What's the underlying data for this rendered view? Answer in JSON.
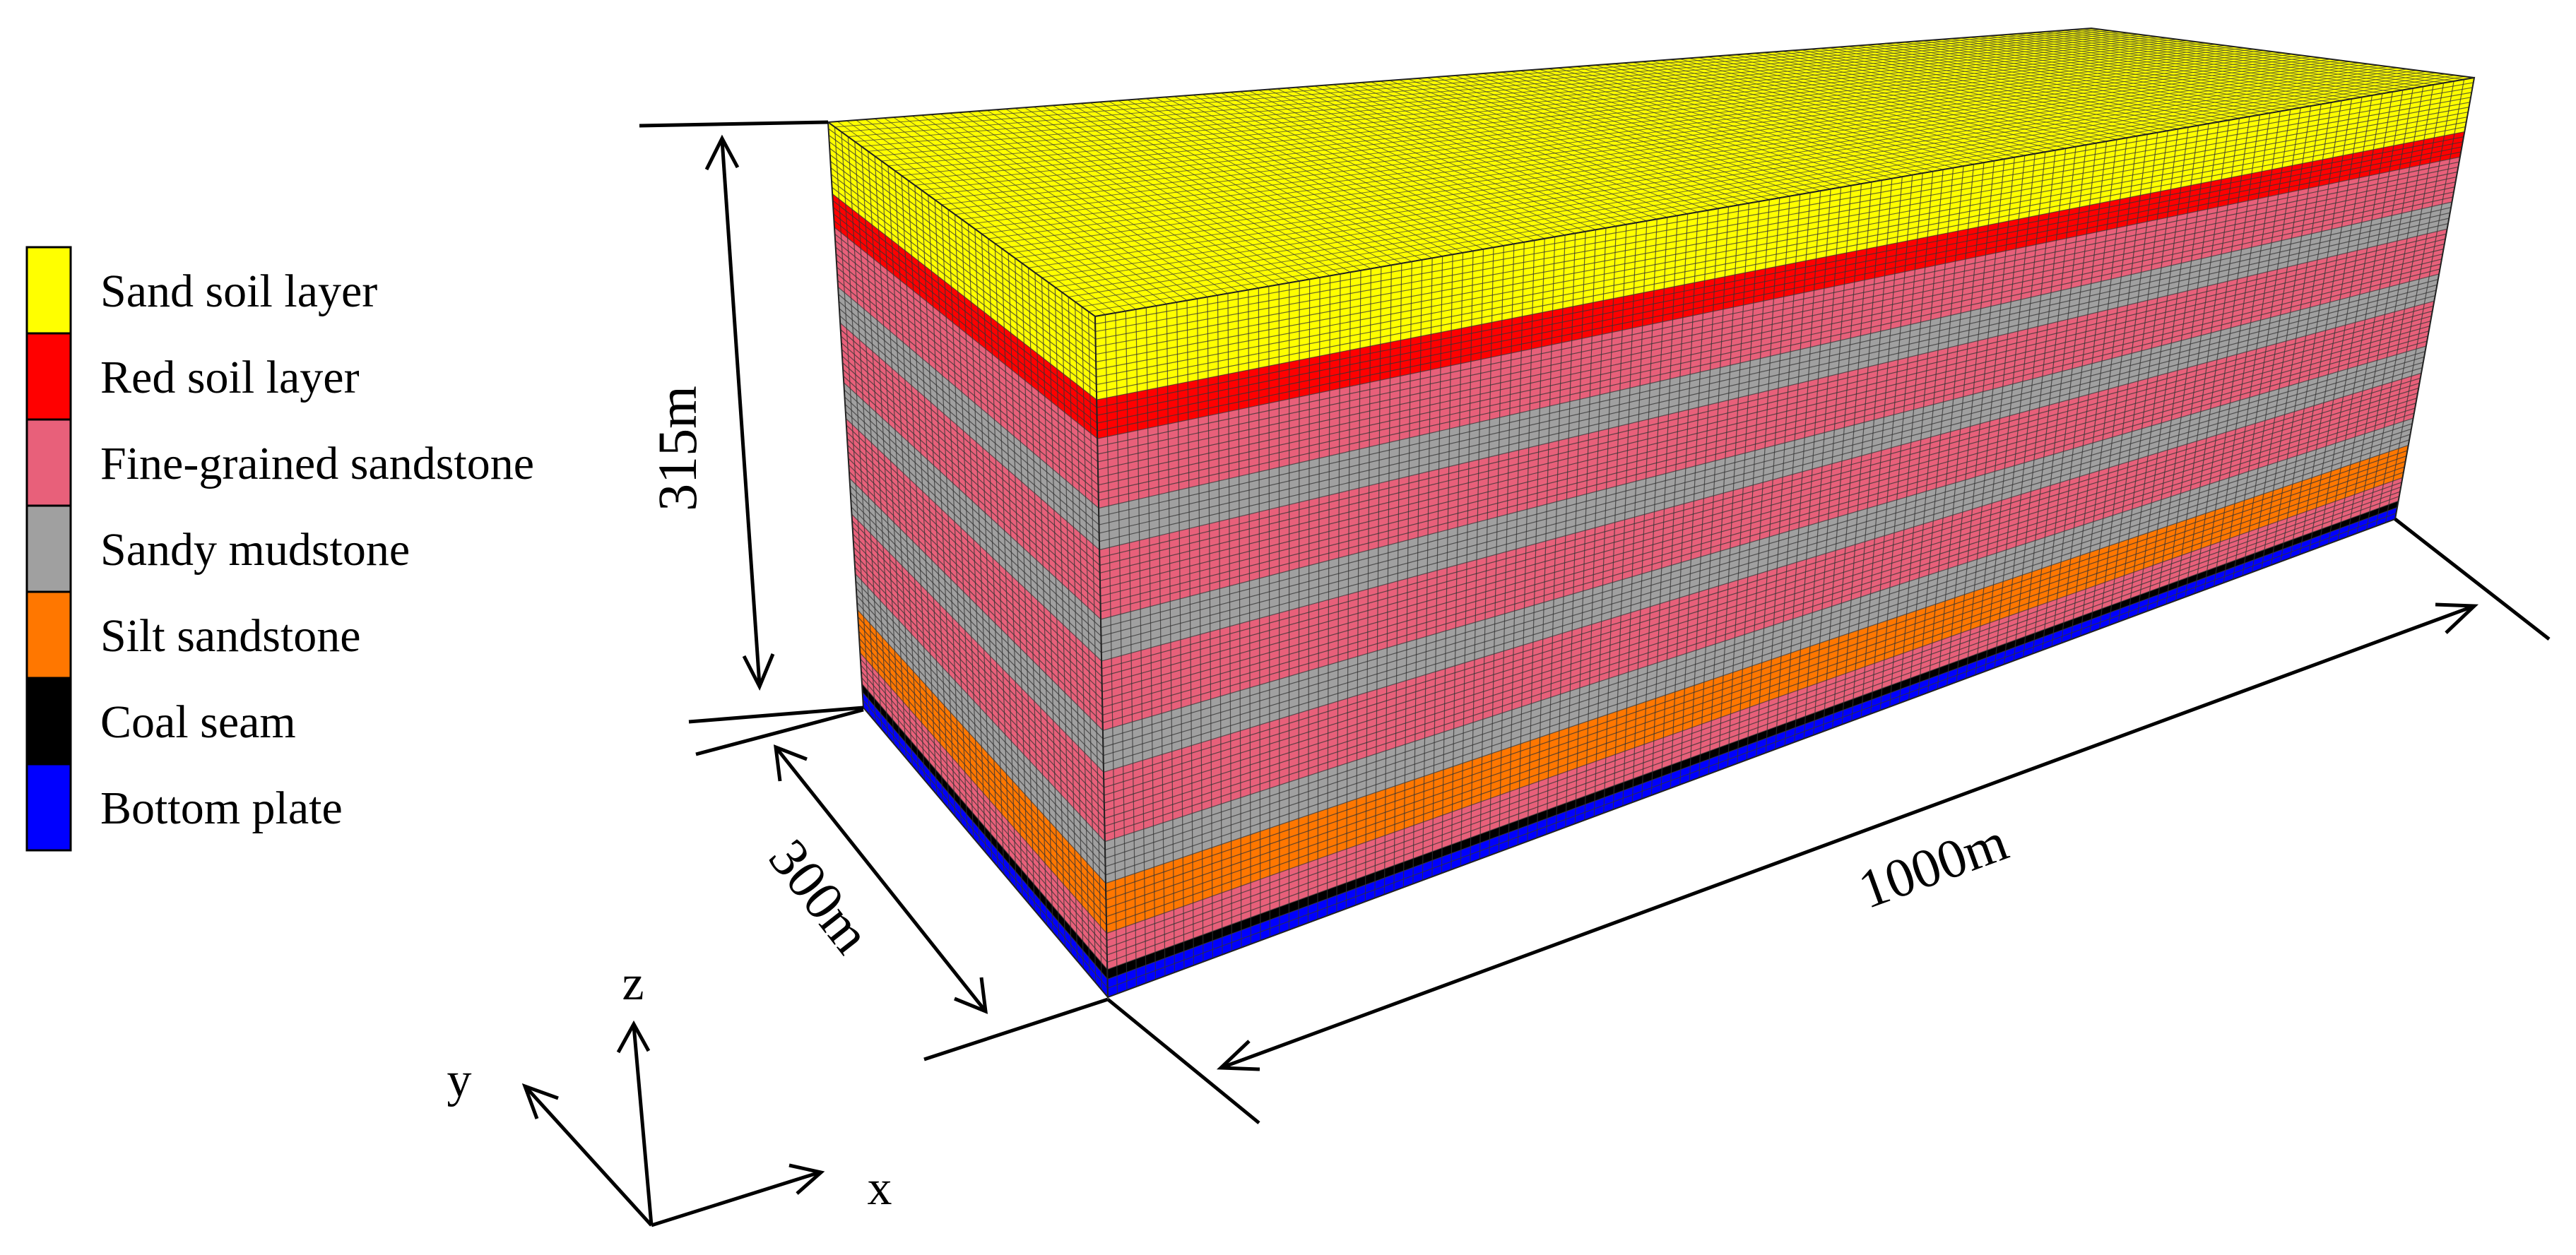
{
  "legend": {
    "items": [
      {
        "label": "Sand soil layer",
        "color": "#ffff00"
      },
      {
        "label": "Red soil layer",
        "color": "#ff0000"
      },
      {
        "label": "Fine-grained sandstone",
        "color": "#e8607a"
      },
      {
        "label": "Sandy mudstone",
        "color": "#a0a0a0"
      },
      {
        "label": "Silt sandstone",
        "color": "#ff7700"
      },
      {
        "label": "Coal seam",
        "color": "#000000"
      },
      {
        "label": "Bottom plate",
        "color": "#0000ff"
      }
    ]
  },
  "dimensions": {
    "height": "315m",
    "width": "300m",
    "length": "1000m"
  },
  "axes": {
    "x": "x",
    "y": "y",
    "z": "z"
  },
  "model": {
    "top_color": "#ffff00",
    "grid_line_color": "#333333",
    "strata_top_to_bottom": [
      {
        "material": "Sand soil layer",
        "thickness": 6
      },
      {
        "material": "Red soil layer",
        "thickness": 2.8
      },
      {
        "material": "Fine-grained sandstone",
        "thickness": 5
      },
      {
        "material": "Sandy mudstone",
        "thickness": 3
      },
      {
        "material": "Fine-grained sandstone",
        "thickness": 5
      },
      {
        "material": "Sandy mudstone",
        "thickness": 3
      },
      {
        "material": "Fine-grained sandstone",
        "thickness": 5
      },
      {
        "material": "Sandy mudstone",
        "thickness": 3
      },
      {
        "material": "Fine-grained sandstone",
        "thickness": 5
      },
      {
        "material": "Sandy mudstone",
        "thickness": 3
      },
      {
        "material": "Silt sandstone",
        "thickness": 3.6
      },
      {
        "material": "Fine-grained sandstone",
        "thickness": 2.6
      },
      {
        "material": "Coal seam",
        "thickness": 0.7
      },
      {
        "material": "Bottom plate",
        "thickness": 1.3
      }
    ]
  }
}
